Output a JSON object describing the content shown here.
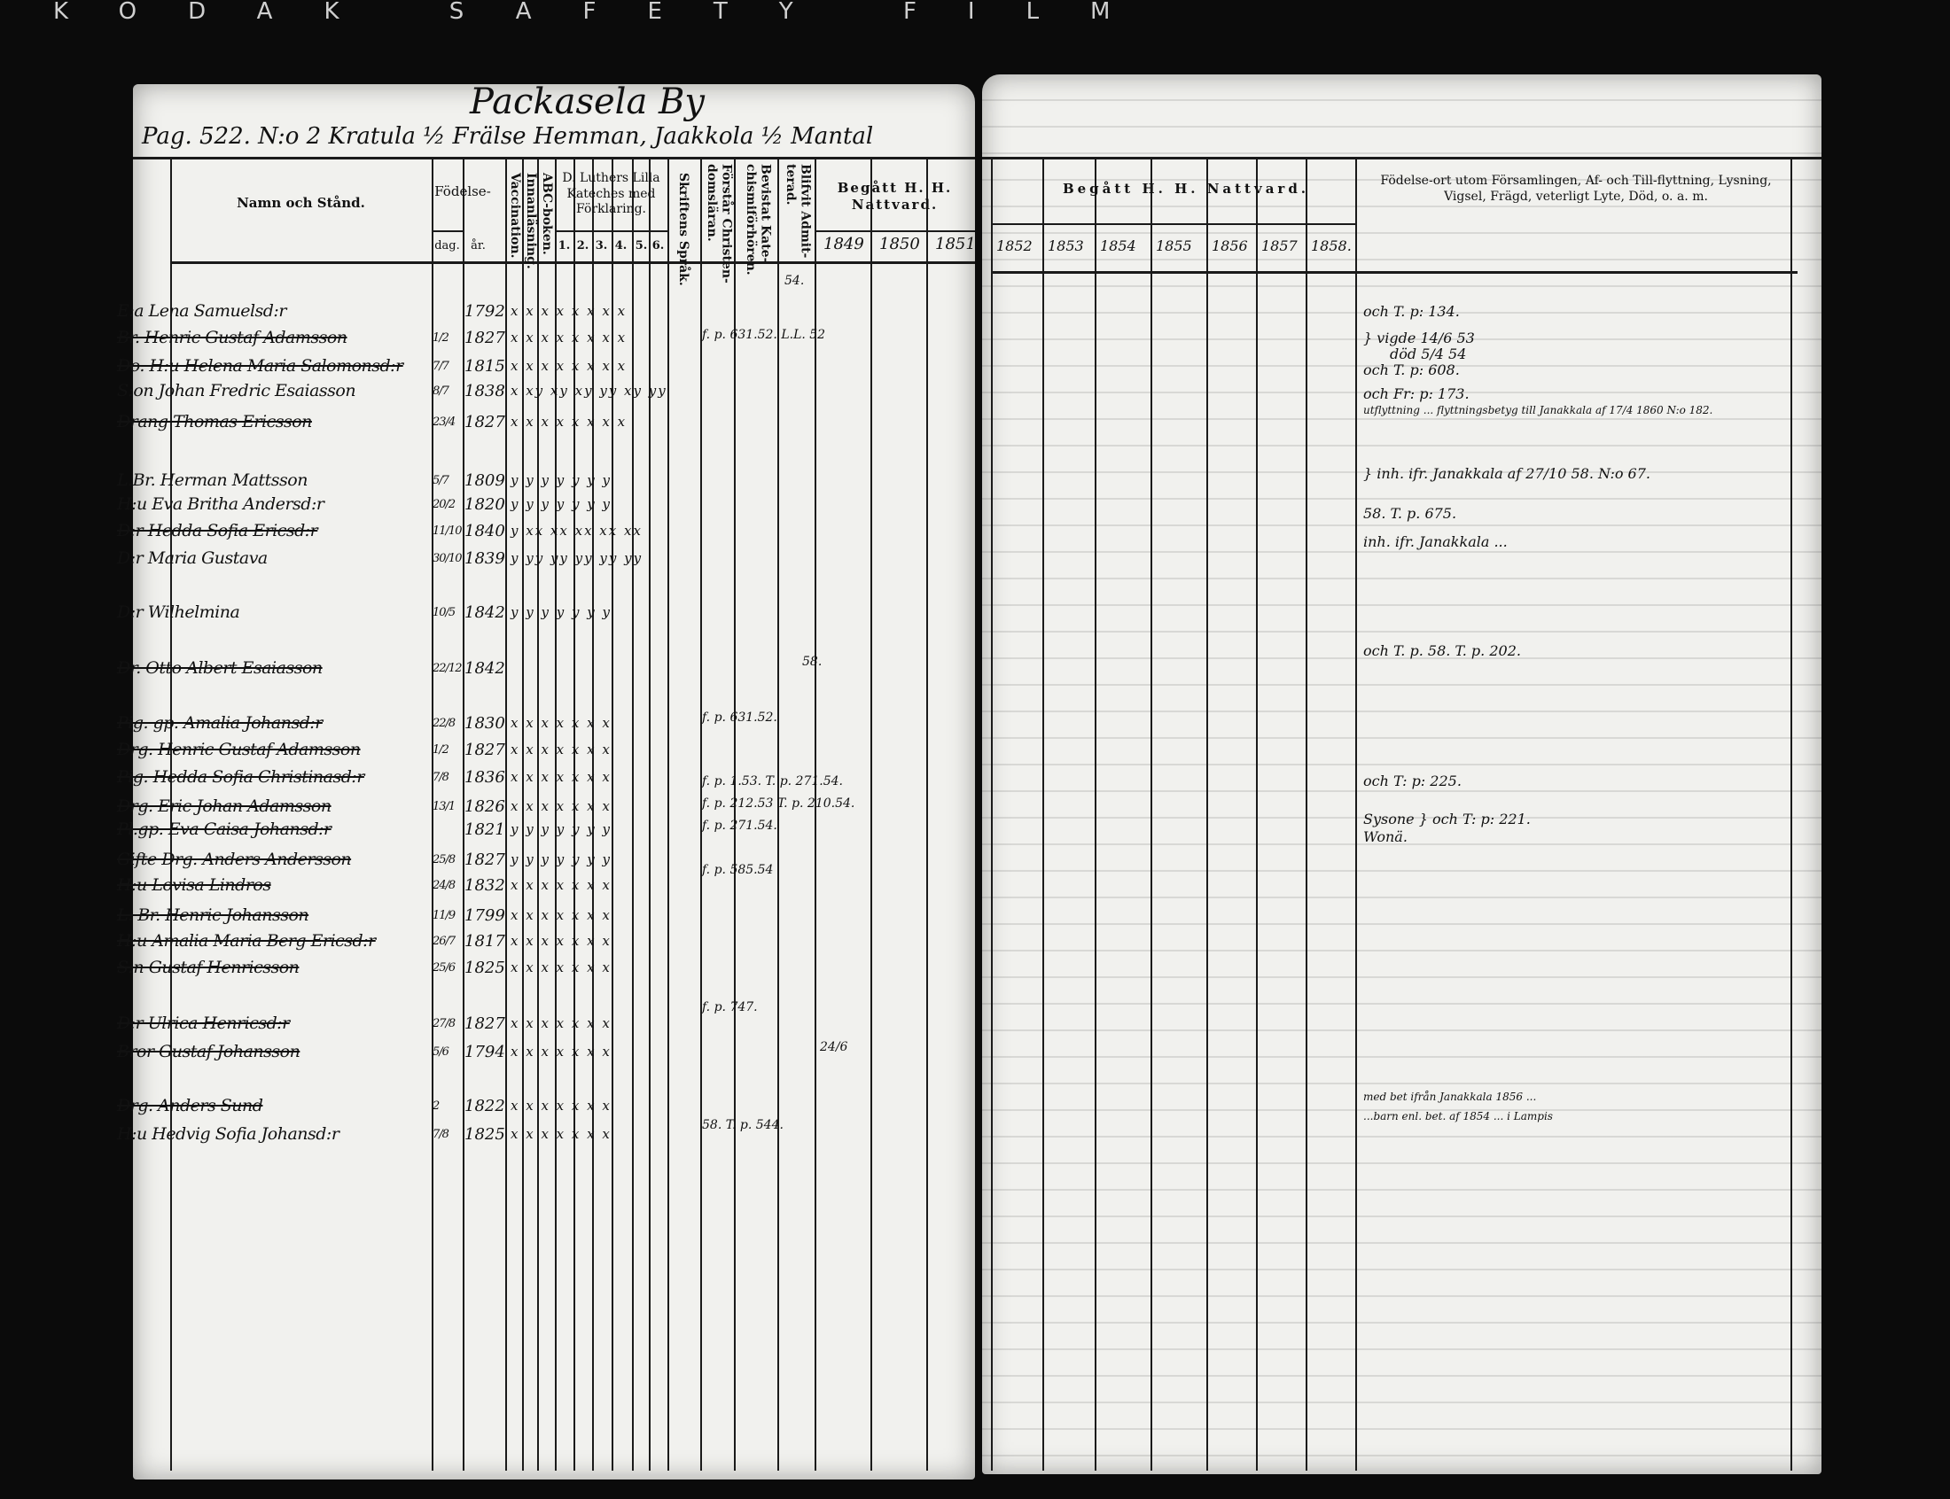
{
  "film_edge": "KODAK SAFETY FILM",
  "left_page": {
    "village_title": "Packasela By",
    "page_heading": "Pag. 522.  N:o 2  Kratula ½ Frälse Hemman, Jaakkola ½ Mantal",
    "headers": {
      "name": "Namn och Stånd.",
      "birth": "Födelse-",
      "day": "dag.",
      "year": "år.",
      "vaccination": "Vaccination.",
      "reading": "Innanläsning.",
      "abc": "ABC-boken.",
      "catechism": "D. Luthers Lilla Kateches med Förklaring.",
      "catechism_parts": [
        "1.",
        "2.",
        "3.",
        "4.",
        "5.",
        "6."
      ],
      "scripture": "Skriftens Språk.",
      "christian": "Förstår Christen-domsläran.",
      "hearing": "Bevistat Kate-chismiförhören.",
      "admitted": "Blifvit Admit-terad.",
      "communion": "Begått H. H. Nattvard.",
      "years": [
        "1849",
        "1850",
        "1851"
      ]
    },
    "rows": [
      {
        "name": "E:a Lena Samuelsd:r",
        "day": "",
        "year": "1792",
        "cat": "x x x x x x x x",
        "struck": false
      },
      {
        "name": "Br. Henric Gustaf Adamsson",
        "day": "1/2",
        "year": "1827",
        "cat": "x x x x x x x x",
        "struck": true
      },
      {
        "name": "Do. H:u Helena Maria Salomonsd:r",
        "day": "7/7",
        "year": "1815",
        "cat": "x x x x x x x x",
        "struck": true
      },
      {
        "name": "S:on Johan Fredric Esaiasson",
        "day": "8/7",
        "year": "1838",
        "cat": "x xy xy xy yy xy yy",
        "struck": false
      },
      {
        "name": "Drang Thomas Ericsson",
        "day": "23/4",
        "year": "1827",
        "cat": "x x x x x x x x",
        "struck": true
      },
      {
        "name": "L.Br. Herman Mattsson",
        "day": "5/7",
        "year": "1809",
        "cat": "y y y y y y y",
        "struck": false
      },
      {
        "name": "H:u Eva Britha Andersd:r",
        "day": "20/2",
        "year": "1820",
        "cat": "y y y y y y y",
        "struck": false
      },
      {
        "name": "D:r Hedda Sofia Ericsd:r",
        "day": "11/10",
        "year": "1840",
        "cat": "y xx xx xx xx xx",
        "struck": true
      },
      {
        "name": "D:r Maria Gustava",
        "day": "30/10",
        "year": "1839",
        "cat": "y yy yy yy yy yy",
        "struck": false
      },
      {
        "name": "D:r Wilhelmina",
        "day": "10/5",
        "year": "1842",
        "cat": "y y y y y y y",
        "struck": false
      },
      {
        "name": "Dr. Otto Albert Esaiasson",
        "day": "22/12",
        "year": "1842",
        "cat": "",
        "struck": true
      },
      {
        "name": "Pig. gp. Amalia Johansd:r",
        "day": "22/8",
        "year": "1830",
        "cat": "x x x x x x x",
        "struck": true
      },
      {
        "name": "Drg. Henric Gustaf Adamsson",
        "day": "1/2",
        "year": "1827",
        "cat": "x x x x x x x",
        "struck": true
      },
      {
        "name": "Pig. Hedda Sofia Christinasd:r",
        "day": "7/8",
        "year": "1836",
        "cat": "x x x x x x x",
        "struck": true
      },
      {
        "name": "Drg. Eric Johan Adamsson",
        "day": "13/1",
        "year": "1826",
        "cat": "x x x x x x x",
        "struck": true
      },
      {
        "name": "Pl.gp. Eva Caisa Johansd:r",
        "day": "",
        "year": "1821",
        "cat": "y y y y y y y",
        "struck": true
      },
      {
        "name": "Gifte Drg. Anders Andersson",
        "day": "25/8",
        "year": "1827",
        "cat": "y y y y y y y",
        "struck": true
      },
      {
        "name": "H:u Lovisa Lindros",
        "day": "24/8",
        "year": "1832",
        "cat": "x x x x x x x",
        "struck": true
      },
      {
        "name": "L. Br. Henric Johansson",
        "day": "11/9",
        "year": "1799",
        "cat": "x x x x x x x",
        "struck": true
      },
      {
        "name": "H:u Amalia Maria Berg Ericsd:r",
        "day": "26/7",
        "year": "1817",
        "cat": "x x x x x x x",
        "struck": true
      },
      {
        "name": "S:n Gustaf Henricsson",
        "day": "25/6",
        "year": "1825",
        "cat": "x x x x x x x",
        "struck": true
      },
      {
        "name": "D:r Ulrica Henricsd:r",
        "day": "27/8",
        "year": "1827",
        "cat": "x x x x x x x",
        "struck": true
      },
      {
        "name": "Bror Gustaf Johansson",
        "day": "5/6",
        "year": "1794",
        "cat": "x x x x x x x",
        "struck": true
      },
      {
        "name": "Drg. Anders Sund",
        "day": "2",
        "year": "1822",
        "cat": "x x x x x x x",
        "struck": true
      },
      {
        "name": "H:u Hedvig Sofia Johansd:r",
        "day": "7/8",
        "year": "1825",
        "cat": "x x x x x x x",
        "struck": false
      }
    ],
    "annotations": [
      "f. p. 631.52. L.L. 52",
      "f. p. 631.52.",
      "f. p. 1.53. T. p. 271.54.",
      "f. p. 212.53 T. p. 210.54.",
      "f. p. 271.54.",
      "f. p. 585.54",
      "f. p. 747.",
      "58. T. p. 544.",
      "54.",
      "58.",
      "24/6"
    ]
  },
  "right_page": {
    "communion_header": "Begått H. H. Nattvard.",
    "years": [
      "1852",
      "1853",
      "1854",
      "1855",
      "1856",
      "1857",
      "1858."
    ],
    "remarks_header": "Födelse-ort utom Församlingen, Af- och Till-flyttning, Lysning, Vigsel, Frägd, veterligt Lyte, Död, o. a. m.",
    "remarks": [
      "och T. p: 134.",
      "} vigde 14/6 53",
      "död 5/4 54",
      "och T. p: 608.",
      "och Fr: p: 173.",
      "utflyttning ... flyttningsbetyg till Janakkala af 17/4 1860 N:o 182.",
      "} inh. ifr. Janakkala af 27/10 58. N:o 67.",
      "58. T. p. 675.",
      "inh. ifr. Janakkala ...",
      "och T. p. 58. T. p. 202.",
      "och T: p: 225.",
      "Sysone } och T: p: 221.",
      "Wonä.",
      "med bet ifrån Janakkala 1856 ...",
      "...barn enl. bet. af 1854 ... i Lampis"
    ]
  }
}
